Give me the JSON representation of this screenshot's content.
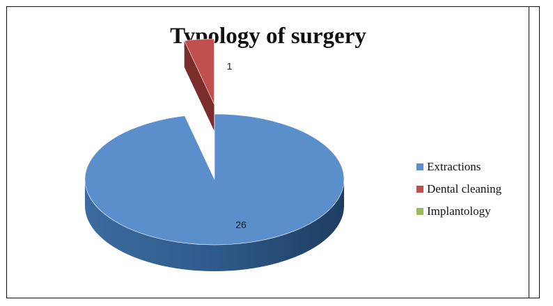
{
  "chart_data": {
    "type": "pie",
    "title": "Typology of surgery",
    "categories": [
      "Extractions",
      "Dental cleaning",
      "Implantology"
    ],
    "values": [
      26,
      1,
      0
    ],
    "data_labels": [
      "26",
      "1",
      ""
    ],
    "colors": [
      "#5b8fcc",
      "#c0504d",
      "#9bbb59"
    ],
    "side_colors": [
      "#2e5783",
      "#7a2d2b",
      "#5f7a30"
    ],
    "legend_position": "right",
    "three_d": true,
    "exploded_slice": "Dental cleaning"
  }
}
